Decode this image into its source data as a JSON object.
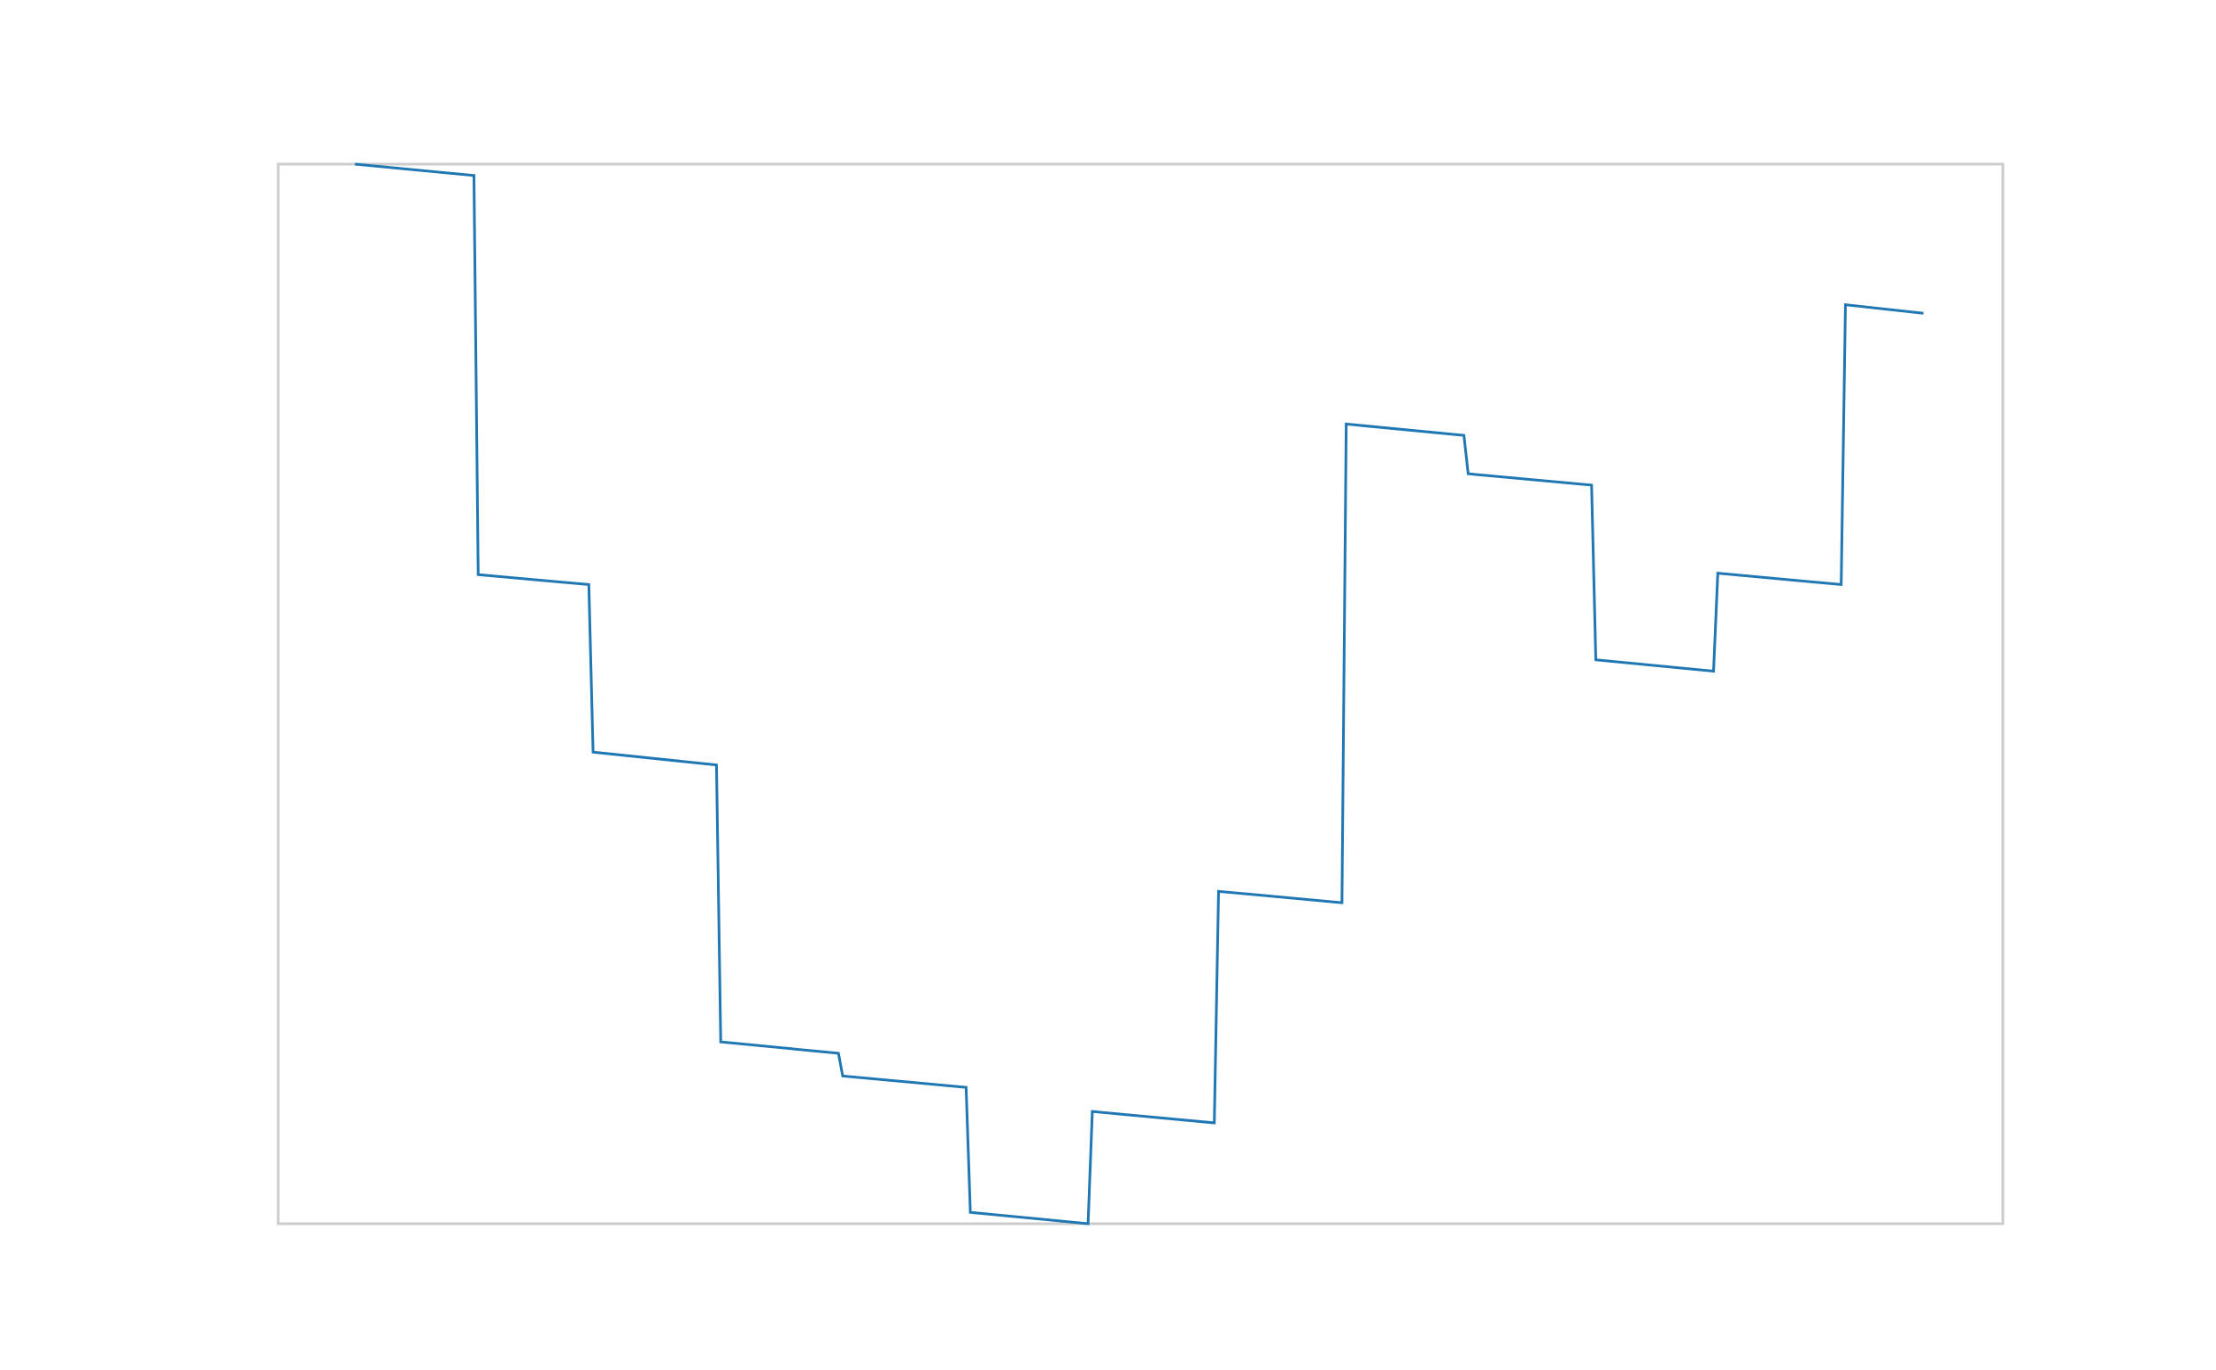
{
  "chart_data": {
    "type": "line",
    "title": "",
    "xlabel": "",
    "ylabel": "",
    "grid": false,
    "legend": "none",
    "show_ticks": false,
    "line_color": "#1f77b4",
    "frame_color": "#cccccc",
    "background": "#ffffff",
    "xlim": [
      0,
      1216
    ],
    "ylim": [
      0,
      746
    ],
    "series": [
      {
        "values": [
          [
            54,
            746
          ],
          [
            138,
            738
          ],
          [
            141,
            457
          ],
          [
            219,
            450
          ],
          [
            222,
            332
          ],
          [
            309,
            323
          ],
          [
            312,
            128
          ],
          [
            395,
            120
          ],
          [
            398,
            104
          ],
          [
            485,
            96
          ],
          [
            488,
            8
          ],
          [
            571,
            0
          ],
          [
            574,
            79
          ],
          [
            660,
            71
          ],
          [
            663,
            234
          ],
          [
            750,
            226
          ],
          [
            753,
            563
          ],
          [
            836,
            555
          ],
          [
            839,
            528
          ],
          [
            926,
            520
          ],
          [
            929,
            397
          ],
          [
            1012,
            389
          ],
          [
            1015,
            458
          ],
          [
            1102,
            450
          ],
          [
            1105,
            647
          ],
          [
            1160,
            641
          ]
        ]
      }
    ]
  }
}
